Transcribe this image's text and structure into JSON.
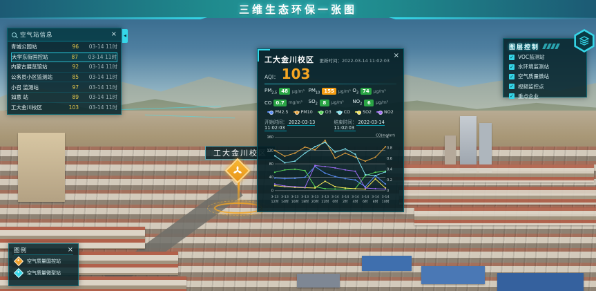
{
  "icons": {
    "close": "×",
    "check": "✓",
    "collapse": "◀"
  },
  "colors": {
    "accent": "#35d6e8",
    "good": "#2aa545",
    "moderate": "#f39c12",
    "aqi": "#f5a623"
  },
  "header": {
    "title": "三维生态环保一张图"
  },
  "left_panel": {
    "title": "空气站信息",
    "rows": [
      {
        "name": "青城公园站",
        "value": "96",
        "time": "03-14 11时",
        "selected": false
      },
      {
        "name": "大学东街国控站",
        "value": "87",
        "time": "03-14 11时",
        "selected": true
      },
      {
        "name": "内蒙古展览馆站",
        "value": "92",
        "time": "03-14 11时",
        "selected": false
      },
      {
        "name": "公务员小区监测站",
        "value": "85",
        "time": "03-14 11时",
        "selected": false
      },
      {
        "name": "小召 监测站",
        "value": "97",
        "time": "03-14 11时",
        "selected": false
      },
      {
        "name": "如意 站",
        "value": "89",
        "time": "03-14 11时",
        "selected": false
      },
      {
        "name": "工大金川校区",
        "value": "103",
        "time": "03-14 11时",
        "selected": false
      }
    ]
  },
  "popup": {
    "title": "工大金川校区",
    "update_label": "更新时间：",
    "update_time": "2022-03-14 11:02:03",
    "aqi_label": "AQI：",
    "aqi_value": "103",
    "pollutants": [
      {
        "name": "PM",
        "sub": "2.5",
        "value": "48",
        "unit": "µg/m³",
        "color": "#2aa545"
      },
      {
        "name": "PM",
        "sub": "10",
        "value": "155",
        "unit": "µg/m³",
        "color": "#f39c12"
      },
      {
        "name": "O",
        "sub": "3",
        "value": "74",
        "unit": "µg/m³",
        "color": "#2aa545"
      },
      {
        "name": "CO",
        "sub": "",
        "value": "0.7",
        "unit": "mg/m³",
        "color": "#2aa545"
      },
      {
        "name": "SO",
        "sub": "2",
        "value": "8",
        "unit": "µg/m³",
        "color": "#2aa545"
      },
      {
        "name": "NO",
        "sub": "2",
        "value": "6",
        "unit": "µg/m³",
        "color": "#2aa545"
      }
    ],
    "start_label": "开始时间：",
    "start_time": "2022-03-13 11:02:03",
    "end_label": "结束时间：",
    "end_time": "2022-03-14 11:02:03"
  },
  "chart_data": {
    "type": "line",
    "title": "",
    "x": [
      "3-13 12时",
      "3-13 14时",
      "3-13 16时",
      "3-13 18时",
      "3-13 20时",
      "3-13 22时",
      "3-14 0时",
      "3-14 2时",
      "3-14 4时",
      "3-14 6时",
      "3-14 8时",
      "3-14 10时"
    ],
    "y_left": {
      "label": "",
      "range": [
        0,
        160
      ],
      "ticks": [
        0,
        40,
        80,
        120,
        160
      ]
    },
    "y_right": {
      "label": "CO(mg/m³)",
      "range": [
        0,
        1
      ],
      "ticks": [
        0,
        0.2,
        0.4,
        0.6,
        0.8,
        1
      ]
    },
    "grid": true,
    "legend_position": "top",
    "series": [
      {
        "name": "PM2.5",
        "color": "#5b8ff9",
        "axis": "left",
        "values": [
          38,
          36,
          37,
          40,
          72,
          52,
          42,
          36,
          32,
          12,
          45,
          20
        ]
      },
      {
        "name": "PM10",
        "color": "#e8a33d",
        "axis": "left",
        "values": [
          120,
          103,
          112,
          130,
          122,
          150,
          97,
          112,
          100,
          88,
          100,
          131
        ]
      },
      {
        "name": "O3",
        "color": "#5ad85a",
        "axis": "left",
        "values": [
          55,
          62,
          64,
          60,
          12,
          6,
          5,
          5,
          6,
          45,
          55,
          58
        ]
      },
      {
        "name": "CO",
        "color": "#7fe3f0",
        "axis": "right",
        "values": [
          0.65,
          0.52,
          0.55,
          0.7,
          0.82,
          0.9,
          0.72,
          0.78,
          0.68,
          0.3,
          0.28,
          0.35
        ]
      },
      {
        "name": "SO2",
        "color": "#f0e356",
        "axis": "left",
        "values": [
          15,
          12,
          10,
          9,
          8,
          28,
          12,
          8,
          6,
          5,
          35,
          8
        ]
      },
      {
        "name": "NO2",
        "color": "#9d6bf5",
        "axis": "left",
        "values": [
          20,
          14,
          12,
          10,
          75,
          72,
          68,
          62,
          58,
          8,
          6,
          5
        ]
      }
    ]
  },
  "layer_panel": {
    "title": "图层控制",
    "items": [
      {
        "label": "VOC监测站",
        "checked": true
      },
      {
        "label": "水环境监测站",
        "checked": true
      },
      {
        "label": "空气质量微站",
        "checked": true
      },
      {
        "label": "视频监控点",
        "checked": true
      },
      {
        "label": "重点企业",
        "checked": true
      }
    ]
  },
  "legend_panel": {
    "title": "图例",
    "items": [
      {
        "label": "空气质量国控站",
        "color": "#f0a12c"
      },
      {
        "label": "空气质量微型站",
        "color": "#35d6e8"
      }
    ]
  },
  "map_marker": {
    "label": "工大金川校区"
  }
}
